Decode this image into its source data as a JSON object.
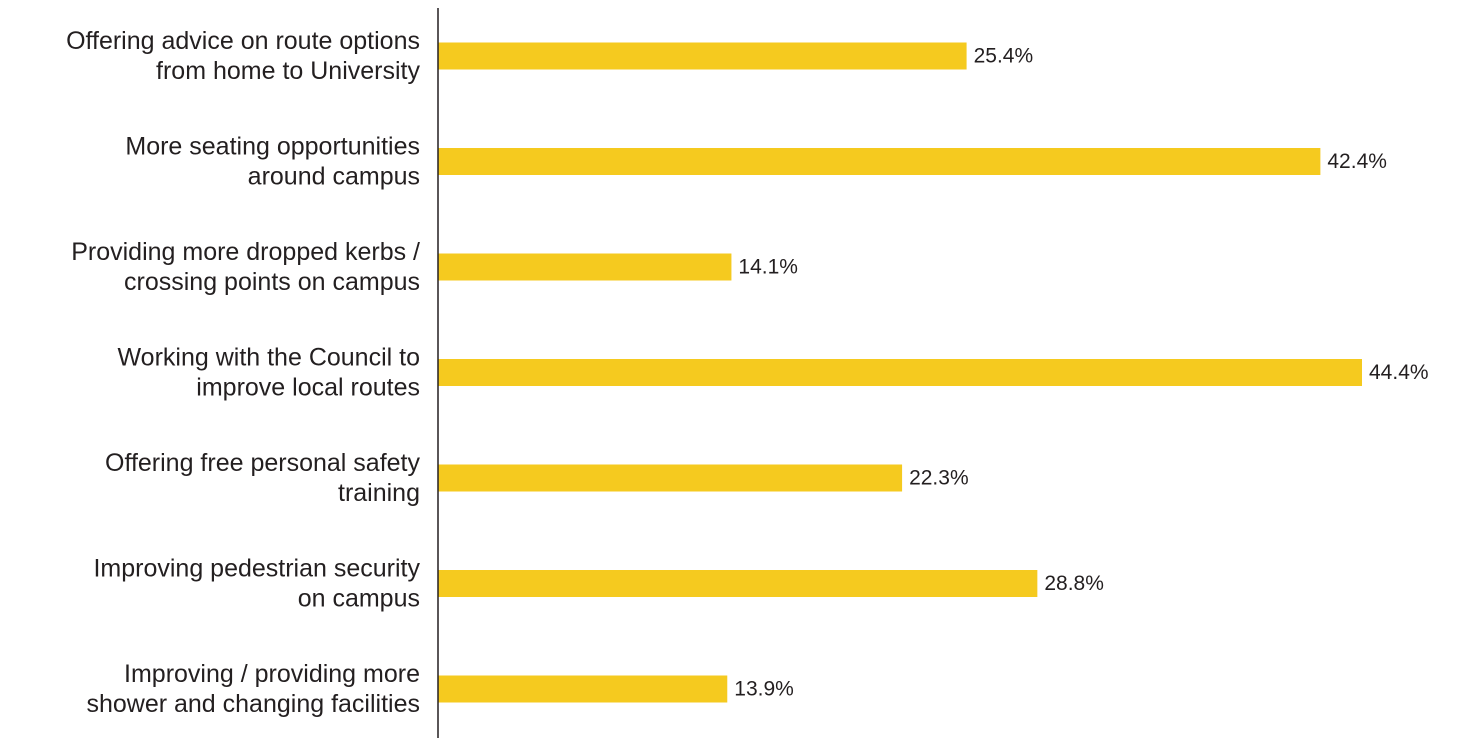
{
  "chart_data": {
    "type": "bar",
    "orientation": "horizontal",
    "categories": [
      [
        "Offering advice on route options",
        "from home to University"
      ],
      [
        "More seating opportunities",
        "around campus"
      ],
      [
        "Providing more dropped kerbs /",
        "crossing points on campus"
      ],
      [
        "Working with the Council to",
        "improve local routes"
      ],
      [
        "Offering free personal safety",
        "training"
      ],
      [
        "Improving pedestrian security",
        "on campus"
      ],
      [
        "Improving / providing more",
        "shower and changing facilities"
      ]
    ],
    "values": [
      25.4,
      42.4,
      14.1,
      44.4,
      22.3,
      28.8,
      13.9
    ],
    "value_labels": [
      "25.4%",
      "42.4%",
      "14.1%",
      "44.4%",
      "22.3%",
      "28.8%",
      "13.9%"
    ],
    "unit": "%",
    "title": "",
    "xlabel": "",
    "ylabel": "",
    "xlim": [
      0,
      44.4
    ],
    "grid": false,
    "legend": "none",
    "colors": {
      "bar": "#f5ca1f",
      "axis": "#231f20",
      "text": "#231f20"
    }
  }
}
